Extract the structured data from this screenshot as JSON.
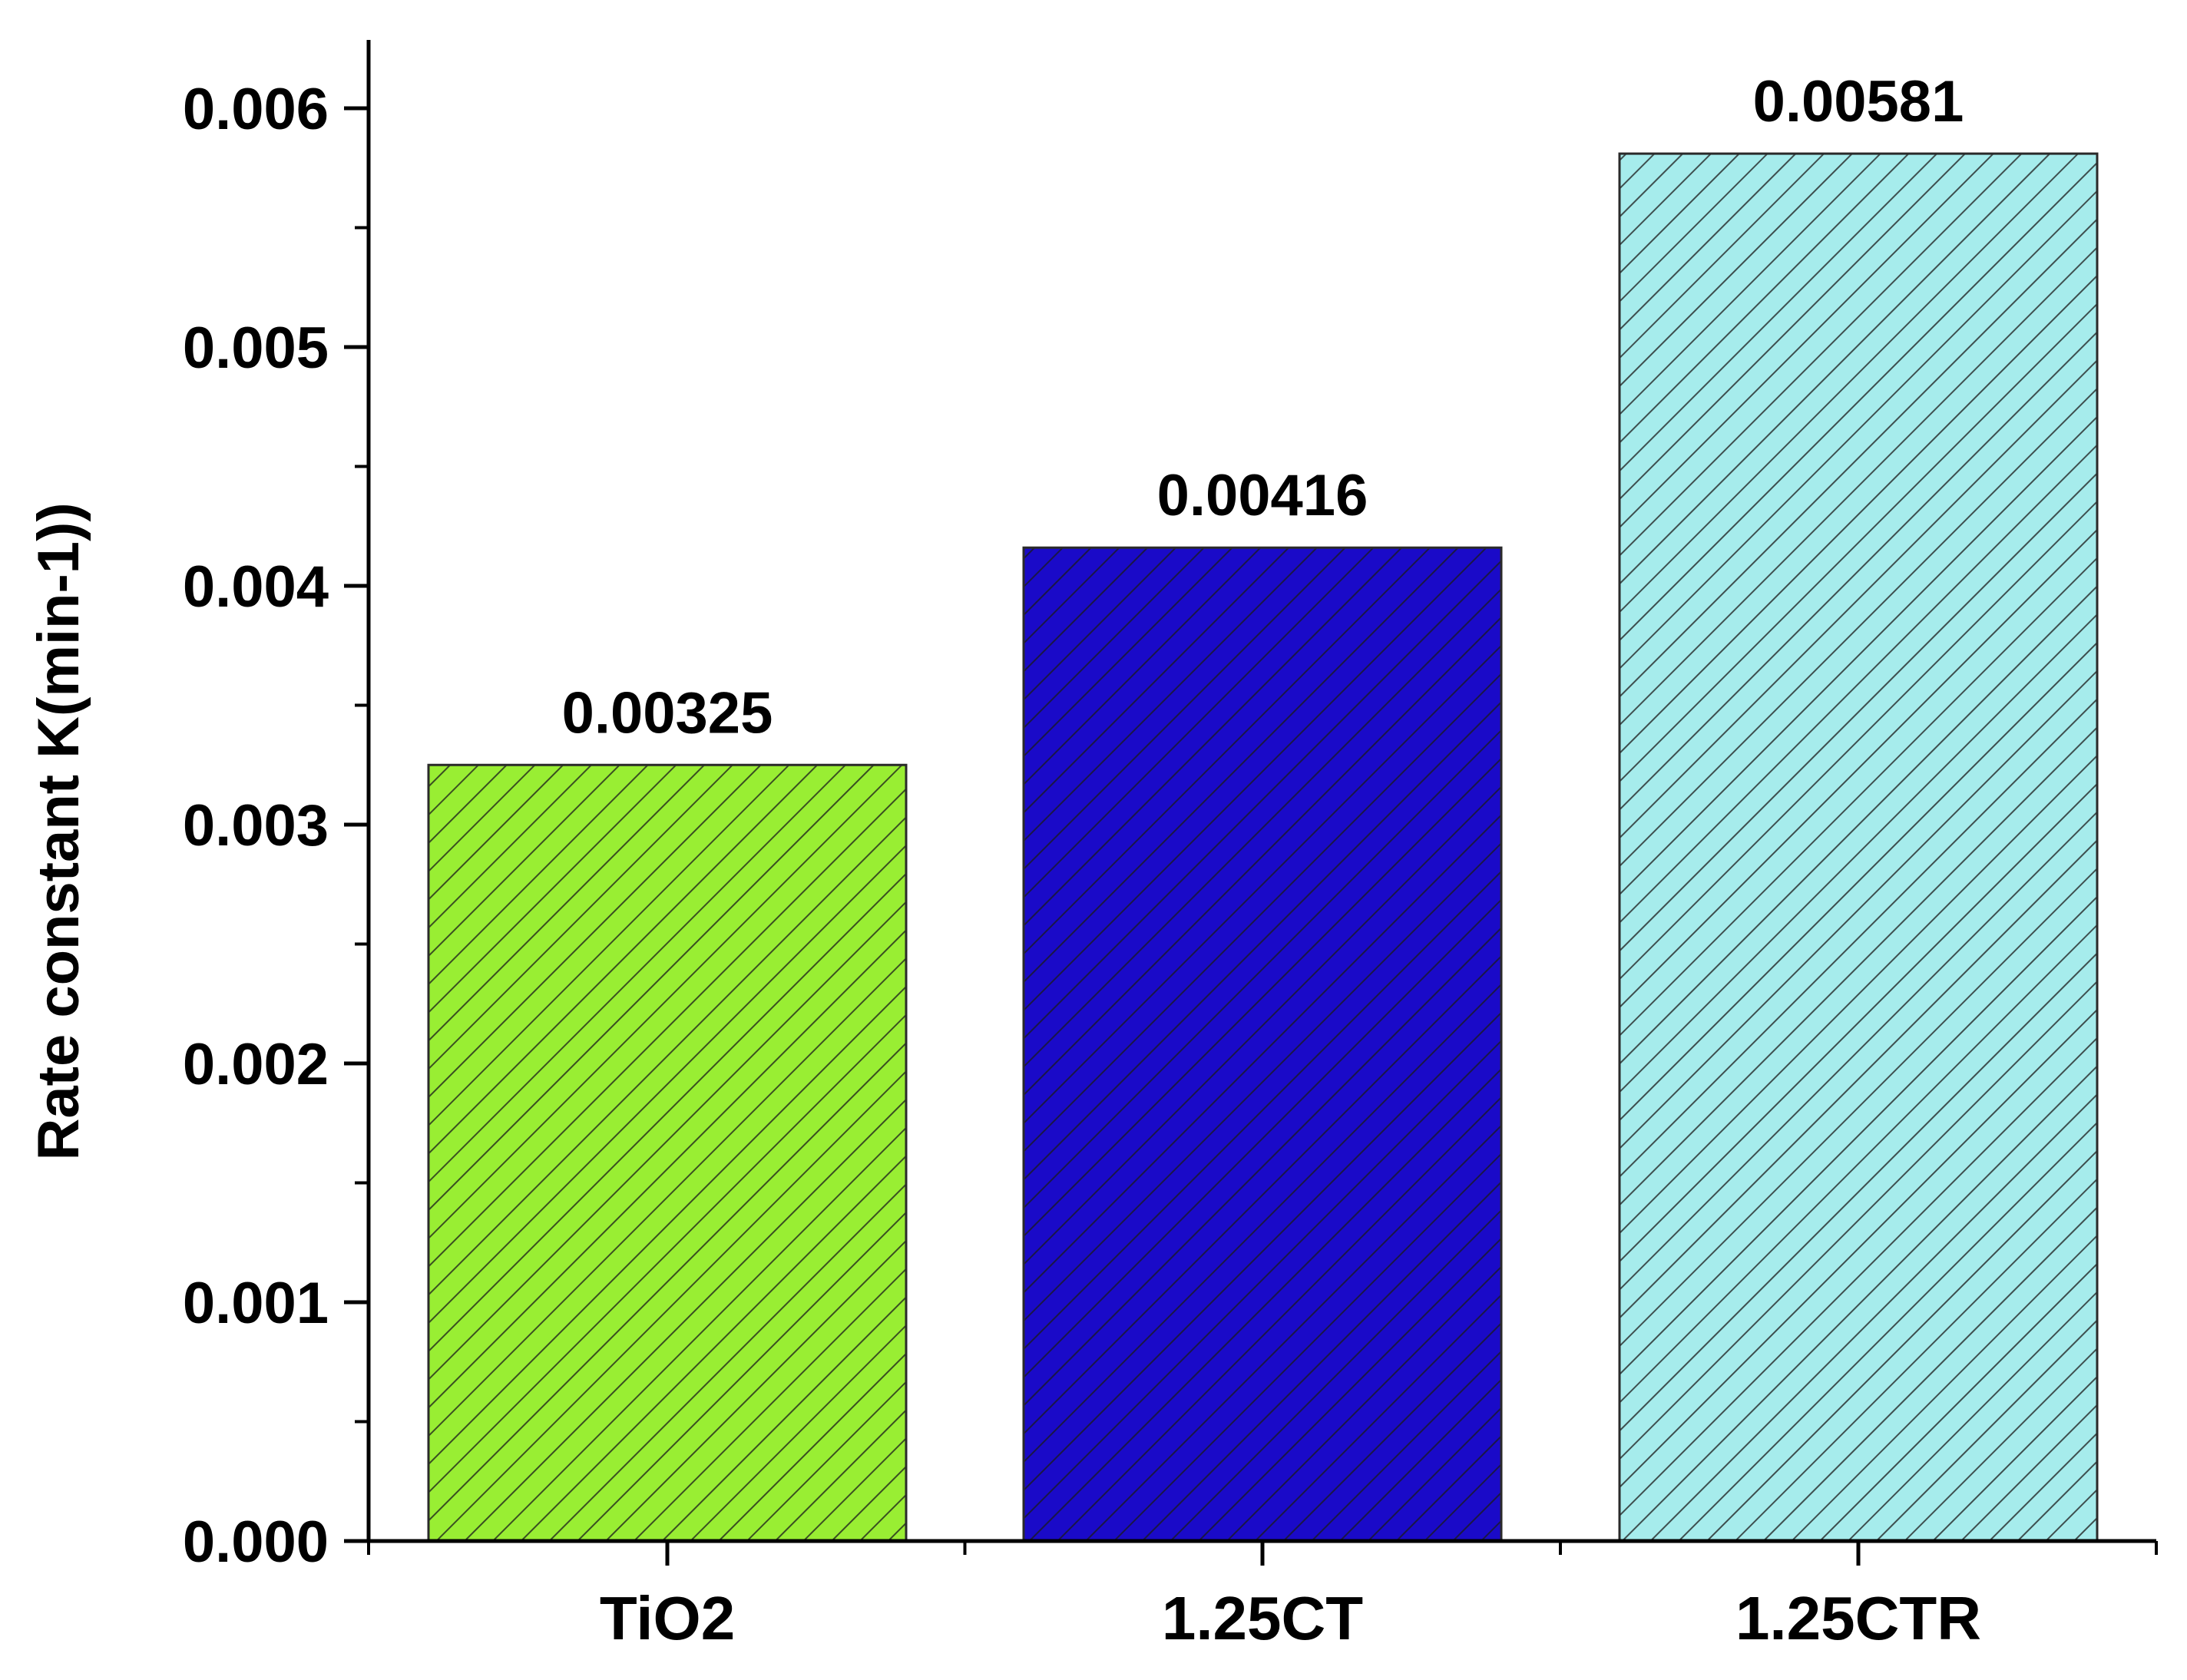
{
  "chart_data": {
    "type": "bar",
    "title": "",
    "xlabel": "",
    "ylabel": "Rate constant K(min-1))",
    "categories": [
      "TiO2",
      "1.25CT",
      "1.25CTR"
    ],
    "values": [
      0.00325,
      0.00416,
      0.00581
    ],
    "data_labels": [
      "0.00325",
      "0.00416",
      "0.00581"
    ],
    "ylim": [
      0,
      0.0062
    ],
    "yticks": [
      0,
      0.001,
      0.002,
      0.003,
      0.004,
      0.005,
      0.006
    ],
    "ytick_labels": [
      "0.000",
      "0.001",
      "0.002",
      "0.003",
      "0.004",
      "0.005",
      "0.006"
    ],
    "grid": false,
    "legend": "none",
    "bar_colors": [
      "#99ee33",
      "#1a0ac8",
      "#a6ecec"
    ],
    "hatch": "diagonal"
  }
}
